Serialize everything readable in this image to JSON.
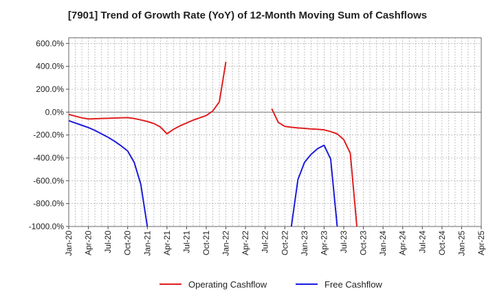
{
  "chart_data": {
    "type": "line",
    "title": "[7901]  Trend of Growth Rate (YoY) of 12-Month Moving Sum of Cashflows",
    "ylim": [
      -1000,
      650
    ],
    "yticks": [
      {
        "value": 600,
        "label": "600.0%"
      },
      {
        "value": 400,
        "label": "400.0%"
      },
      {
        "value": 200,
        "label": "200.0%"
      },
      {
        "value": 0,
        "label": "0.0%"
      },
      {
        "value": -200,
        "label": "-200.0%"
      },
      {
        "value": -400,
        "label": "-400.0%"
      },
      {
        "value": -600,
        "label": "-600.0%"
      },
      {
        "value": -800,
        "label": "-800.0%"
      },
      {
        "value": -1000,
        "label": "-1000.0%"
      }
    ],
    "xrange": [
      "2020-01",
      "2025-04"
    ],
    "xticks": [
      "Jan-20",
      "Apr-20",
      "Jul-20",
      "Oct-20",
      "Jan-21",
      "Apr-21",
      "Jul-21",
      "Oct-21",
      "Jan-22",
      "Apr-22",
      "Jul-22",
      "Oct-22",
      "Jan-23",
      "Apr-23",
      "Jul-23",
      "Oct-23",
      "Jan-24",
      "Apr-24",
      "Jul-24",
      "Oct-24",
      "Jan-25",
      "Apr-25"
    ],
    "grid": true,
    "legend_position": "bottom",
    "series": [
      {
        "name": "Operating Cashflow",
        "color": "#e01e1e",
        "segments": [
          [
            [
              "2020-01",
              -20
            ],
            [
              "2020-02",
              -35
            ],
            [
              "2020-03",
              -50
            ],
            [
              "2020-04",
              -60
            ],
            [
              "2020-05",
              -58
            ],
            [
              "2020-06",
              -56
            ],
            [
              "2020-07",
              -54
            ],
            [
              "2020-08",
              -52
            ],
            [
              "2020-09",
              -50
            ],
            [
              "2020-10",
              -48
            ],
            [
              "2020-11",
              -56
            ],
            [
              "2020-12",
              -68
            ],
            [
              "2021-01",
              -82
            ],
            [
              "2021-02",
              -100
            ],
            [
              "2021-03",
              -130
            ],
            [
              "2021-04",
              -190
            ],
            [
              "2021-05",
              -150
            ],
            [
              "2021-06",
              -120
            ],
            [
              "2021-07",
              -95
            ],
            [
              "2021-08",
              -70
            ],
            [
              "2021-09",
              -50
            ],
            [
              "2021-10",
              -30
            ],
            [
              "2021-11",
              10
            ],
            [
              "2021-12",
              90
            ],
            [
              "2022-01",
              440
            ]
          ],
          [
            [
              "2022-08",
              30
            ],
            [
              "2022-09",
              -90
            ],
            [
              "2022-10",
              -125
            ],
            [
              "2022-11",
              -132
            ],
            [
              "2022-12",
              -138
            ],
            [
              "2023-01",
              -142
            ],
            [
              "2023-02",
              -147
            ],
            [
              "2023-03",
              -150
            ],
            [
              "2023-04",
              -155
            ],
            [
              "2023-05",
              -170
            ],
            [
              "2023-06",
              -190
            ],
            [
              "2023-07",
              -240
            ],
            [
              "2023-08",
              -360
            ],
            [
              "2023-09",
              -1000
            ]
          ]
        ]
      },
      {
        "name": "Free Cashflow",
        "color": "#1a1adb",
        "segments": [
          [
            [
              "2020-01",
              -75
            ],
            [
              "2020-02",
              -95
            ],
            [
              "2020-03",
              -115
            ],
            [
              "2020-04",
              -135
            ],
            [
              "2020-05",
              -160
            ],
            [
              "2020-06",
              -190
            ],
            [
              "2020-07",
              -220
            ],
            [
              "2020-08",
              -255
            ],
            [
              "2020-09",
              -295
            ],
            [
              "2020-10",
              -340
            ],
            [
              "2020-11",
              -440
            ],
            [
              "2020-12",
              -630
            ],
            [
              "2021-01",
              -1000
            ]
          ],
          [
            [
              "2022-11",
              -1000
            ],
            [
              "2022-12",
              -590
            ],
            [
              "2023-01",
              -440
            ],
            [
              "2023-02",
              -370
            ],
            [
              "2023-03",
              -320
            ],
            [
              "2023-04",
              -290
            ],
            [
              "2023-05",
              -410
            ],
            [
              "2023-06",
              -1000
            ]
          ]
        ]
      }
    ]
  }
}
